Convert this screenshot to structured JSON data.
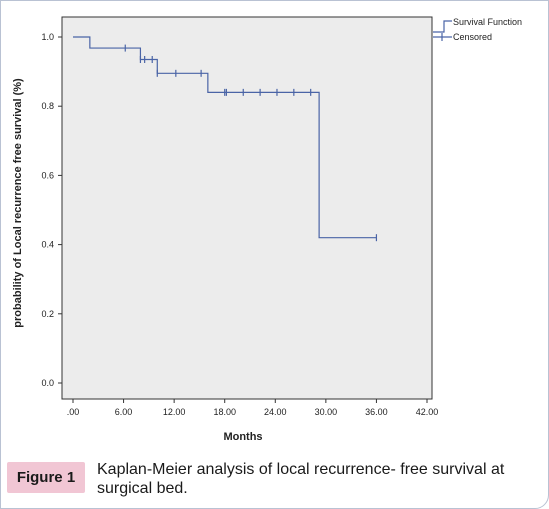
{
  "figure": {
    "badge": "Figure 1",
    "caption": "Kaplan-Meier analysis of local recurrence- free survival at surgical bed."
  },
  "chart_data": {
    "type": "line",
    "subtype": "kaplan-meier-step",
    "title": "",
    "xlabel": "Months",
    "ylabel": "probability of Local recurrence free survival (%)",
    "xlim": [
      0,
      42
    ],
    "ylim": [
      0,
      1.0
    ],
    "xticks": [
      0,
      6,
      12,
      18,
      24,
      30,
      36,
      42
    ],
    "xtick_labels": [
      ".00",
      "6.00",
      "12.00",
      "18.00",
      "24.00",
      "30.00",
      "36.00",
      "42.00"
    ],
    "yticks": [
      0,
      0.2,
      0.4,
      0.6,
      0.8,
      1.0
    ],
    "ytick_labels": [
      "0.0",
      "0.2",
      "0.4",
      "0.6",
      "0.8",
      "1.0"
    ],
    "grid": false,
    "background": "#ececec",
    "line_color": "#4a64a6",
    "legend_position": "top-right",
    "series": [
      {
        "name": "Survival Function",
        "steps": [
          {
            "x": 0,
            "y": 1.0
          },
          {
            "x": 2,
            "y": 0.968
          },
          {
            "x": 8,
            "y": 0.935
          },
          {
            "x": 10,
            "y": 0.895
          },
          {
            "x": 16,
            "y": 0.84
          },
          {
            "x": 29.2,
            "y": 0.42
          },
          {
            "x": 36,
            "y": 0.42
          }
        ]
      },
      {
        "name": "Censored",
        "points": [
          {
            "x": 6.2,
            "y": 0.968
          },
          {
            "x": 8.0,
            "y": 0.935
          },
          {
            "x": 8.5,
            "y": 0.935
          },
          {
            "x": 9.4,
            "y": 0.935
          },
          {
            "x": 10.0,
            "y": 0.895
          },
          {
            "x": 12.2,
            "y": 0.895
          },
          {
            "x": 15.2,
            "y": 0.895
          },
          {
            "x": 18.0,
            "y": 0.84
          },
          {
            "x": 18.2,
            "y": 0.84
          },
          {
            "x": 20.2,
            "y": 0.84
          },
          {
            "x": 22.2,
            "y": 0.84
          },
          {
            "x": 24.2,
            "y": 0.84
          },
          {
            "x": 26.2,
            "y": 0.84
          },
          {
            "x": 28.2,
            "y": 0.84
          },
          {
            "x": 36.0,
            "y": 0.42
          }
        ]
      }
    ]
  }
}
